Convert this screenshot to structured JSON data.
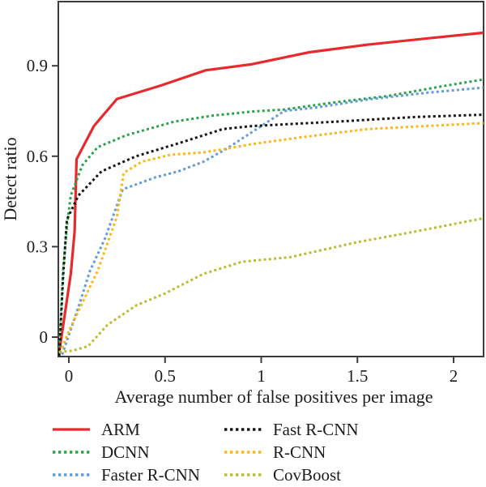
{
  "figure": {
    "background": "#ffffff",
    "axis_color": "#3c3c3c",
    "text_color": "#1c1c1c"
  },
  "chart_data": {
    "type": "line",
    "title": "",
    "xlabel": "Average number of false positives per image",
    "ylabel": "Detect ratio",
    "xlim": [
      -0.055,
      2.156
    ],
    "ylim": [
      -0.065,
      1.113
    ],
    "grid": false,
    "legend_position": "below-two-columns",
    "x_ticks": [
      0,
      0.5,
      1,
      1.5,
      2
    ],
    "x_tick_labels": [
      "0",
      "0.5",
      "1",
      "1.5",
      "2"
    ],
    "y_ticks": [
      0,
      0.3,
      0.6,
      0.9
    ],
    "y_tick_labels": [
      "0",
      "0.3",
      "0.6",
      "0.9"
    ],
    "series": [
      {
        "name": "ARM",
        "color": "#e82a2d",
        "style": "solid",
        "points": [
          [
            -0.05,
            -0.05
          ],
          [
            0.01,
            0.21
          ],
          [
            0.03,
            0.35
          ],
          [
            0.04,
            0.59
          ],
          [
            0.13,
            0.7
          ],
          [
            0.25,
            0.79
          ],
          [
            0.48,
            0.835
          ],
          [
            0.71,
            0.885
          ],
          [
            0.95,
            0.905
          ],
          [
            1.25,
            0.945
          ],
          [
            1.55,
            0.97
          ],
          [
            1.85,
            0.99
          ],
          [
            2.16,
            1.01
          ]
        ]
      },
      {
        "name": "DCNN",
        "color": "#2aa44a",
        "style": "dotted",
        "points": [
          [
            -0.05,
            -0.05
          ],
          [
            -0.03,
            0.22
          ],
          [
            -0.01,
            0.37
          ],
          [
            0.01,
            0.47
          ],
          [
            0.07,
            0.57
          ],
          [
            0.15,
            0.63
          ],
          [
            0.3,
            0.67
          ],
          [
            0.55,
            0.715
          ],
          [
            0.75,
            0.735
          ],
          [
            0.95,
            0.748
          ],
          [
            1.12,
            0.755
          ],
          [
            1.4,
            0.78
          ],
          [
            1.66,
            0.8
          ],
          [
            1.95,
            0.833
          ],
          [
            2.16,
            0.855
          ]
        ]
      },
      {
        "name": "Faster R-CNN",
        "color": "#619bd9",
        "style": "dotted",
        "points": [
          [
            -0.035,
            -0.058
          ],
          [
            0.05,
            0.1
          ],
          [
            0.11,
            0.22
          ],
          [
            0.19,
            0.33
          ],
          [
            0.28,
            0.49
          ],
          [
            0.45,
            0.53
          ],
          [
            0.57,
            0.55
          ],
          [
            0.7,
            0.582
          ],
          [
            0.82,
            0.625
          ],
          [
            1.0,
            0.7
          ],
          [
            1.12,
            0.75
          ],
          [
            1.3,
            0.763
          ],
          [
            1.55,
            0.788
          ],
          [
            1.85,
            0.81
          ],
          [
            2.16,
            0.828
          ]
        ]
      },
      {
        "name": "Fast R-CNN",
        "color": "#161616",
        "style": "dotted",
        "points": [
          [
            -0.05,
            -0.062
          ],
          [
            -0.03,
            0.2
          ],
          [
            -0.01,
            0.39
          ],
          [
            0.05,
            0.47
          ],
          [
            0.17,
            0.55
          ],
          [
            0.35,
            0.6
          ],
          [
            0.58,
            0.645
          ],
          [
            0.8,
            0.69
          ],
          [
            0.95,
            0.7
          ],
          [
            1.4,
            0.715
          ],
          [
            1.8,
            0.73
          ],
          [
            2.16,
            0.738
          ]
        ]
      },
      {
        "name": "R-CNN",
        "color": "#fdb714",
        "style": "dotted",
        "points": [
          [
            -0.045,
            -0.052
          ],
          [
            0.0,
            0.02
          ],
          [
            0.15,
            0.22
          ],
          [
            0.25,
            0.4
          ],
          [
            0.285,
            0.545
          ],
          [
            0.38,
            0.582
          ],
          [
            0.53,
            0.605
          ],
          [
            0.7,
            0.613
          ],
          [
            0.82,
            0.625
          ],
          [
            0.95,
            0.64
          ],
          [
            1.2,
            0.662
          ],
          [
            1.55,
            0.69
          ],
          [
            1.85,
            0.7
          ],
          [
            2.16,
            0.71
          ]
        ]
      },
      {
        "name": "CovBoost",
        "color": "#b9bd32",
        "style": "dotted",
        "points": [
          [
            -0.05,
            -0.05
          ],
          [
            0.02,
            -0.045
          ],
          [
            0.1,
            -0.03
          ],
          [
            0.2,
            0.04
          ],
          [
            0.35,
            0.105
          ],
          [
            0.5,
            0.145
          ],
          [
            0.7,
            0.21
          ],
          [
            0.9,
            0.25
          ],
          [
            1.15,
            0.265
          ],
          [
            1.5,
            0.315
          ],
          [
            1.8,
            0.35
          ],
          [
            2.16,
            0.395
          ]
        ]
      }
    ]
  }
}
